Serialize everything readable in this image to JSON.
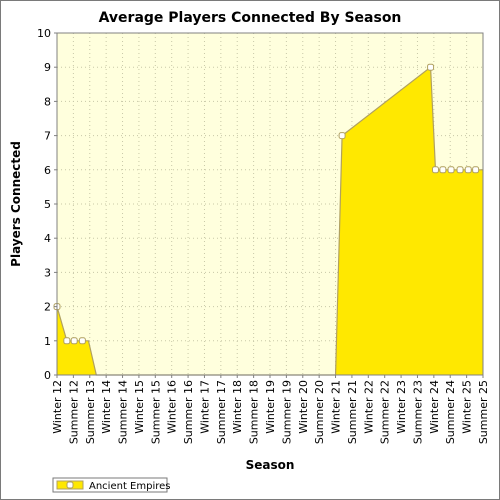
{
  "chart_data": {
    "type": "area",
    "title": "Average Players Connected By Season",
    "xlabel": "Season",
    "ylabel": "Players Connected",
    "ylim": [
      0,
      10
    ],
    "yticks": [
      "0",
      "1",
      "2",
      "3",
      "4",
      "5",
      "6",
      "7",
      "8",
      "9",
      "10"
    ],
    "grid": true,
    "legend_position": "bottom-left",
    "colors": {
      "fill": "#ffe800",
      "line": "#b0a060",
      "plot_bg": "#ffffdd",
      "grid": "#c8c8a8",
      "marker_fill": "#ffffff"
    },
    "x_ticks": [
      "Winter 12",
      "Summer 12",
      "Summer 13",
      "Winter 14",
      "Summer 14",
      "Winter 15",
      "Summer 15",
      "Winter 16",
      "Summer 16",
      "Winter 17",
      "Summer 17",
      "Winter 18",
      "Summer 18",
      "Winter 19",
      "Summer 19",
      "Winter 20",
      "Summer 20",
      "Winter 21",
      "Summer 21",
      "Winter 22",
      "Summer 22",
      "Winter 23",
      "Summer 23",
      "Winter 24",
      "Summer 24",
      "Winter 25",
      "Summer 25"
    ],
    "series": [
      {
        "name": "Ancient Empires",
        "x": [
          0,
          0.6,
          1.05,
          1.55,
          1.92,
          2.4,
          16.3,
          16.65,
          17.0,
          17.4,
          22.8,
          23.1,
          23.55,
          24.05,
          24.6,
          25.1,
          25.55,
          26.0
        ],
        "values": [
          2,
          1,
          1,
          1,
          1,
          0,
          0,
          0,
          0,
          7,
          9,
          6,
          6,
          6,
          6,
          6,
          6,
          6
        ],
        "markers": [
          true,
          true,
          true,
          true,
          false,
          false,
          false,
          false,
          false,
          true,
          true,
          true,
          true,
          true,
          true,
          true,
          true,
          false
        ]
      }
    ]
  }
}
